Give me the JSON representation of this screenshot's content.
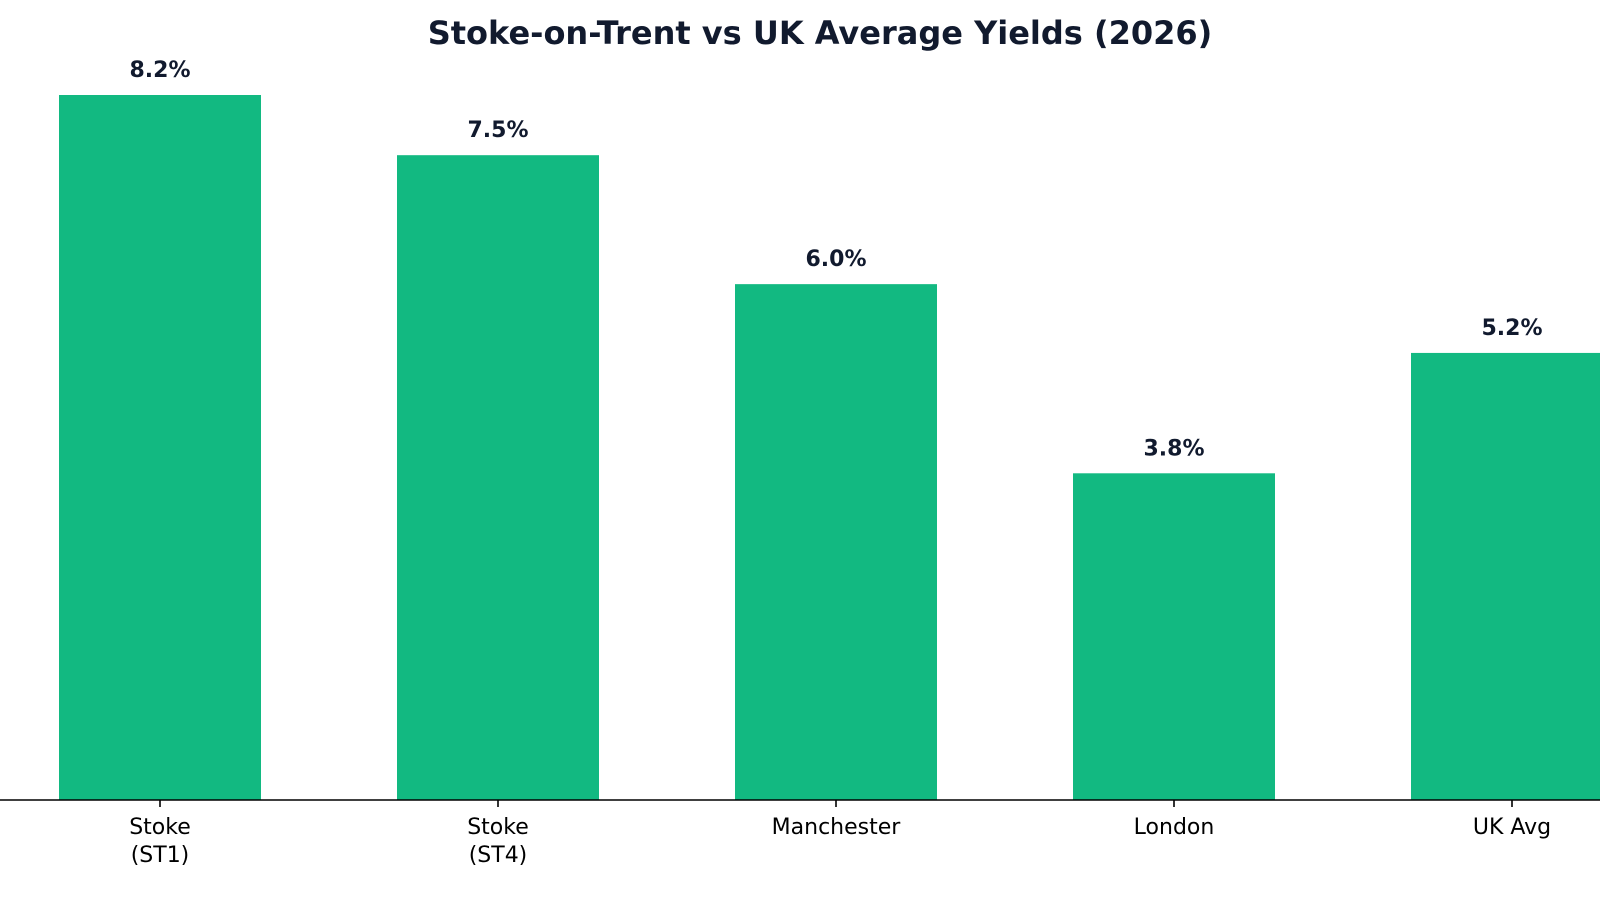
{
  "chart_data": {
    "type": "bar",
    "title": "Stoke-on-Trent vs UK Average Yields (2026)",
    "xlabel": "",
    "ylabel": "",
    "categories": [
      [
        "Stoke",
        "(ST1)"
      ],
      [
        "Stoke",
        "(ST4)"
      ],
      [
        "Manchester"
      ],
      [
        "London"
      ],
      [
        "UK Avg"
      ]
    ],
    "values": [
      8.2,
      7.5,
      6.0,
      3.8,
      5.2
    ],
    "value_labels": [
      "8.2%",
      "7.5%",
      "6.0%",
      "3.8%",
      "5.2%"
    ],
    "ylim": [
      0,
      8.2
    ],
    "grid": false,
    "legend": "none",
    "colors": {
      "bar": "#12B981",
      "text": "#111A2E",
      "axis": "#000000"
    }
  }
}
